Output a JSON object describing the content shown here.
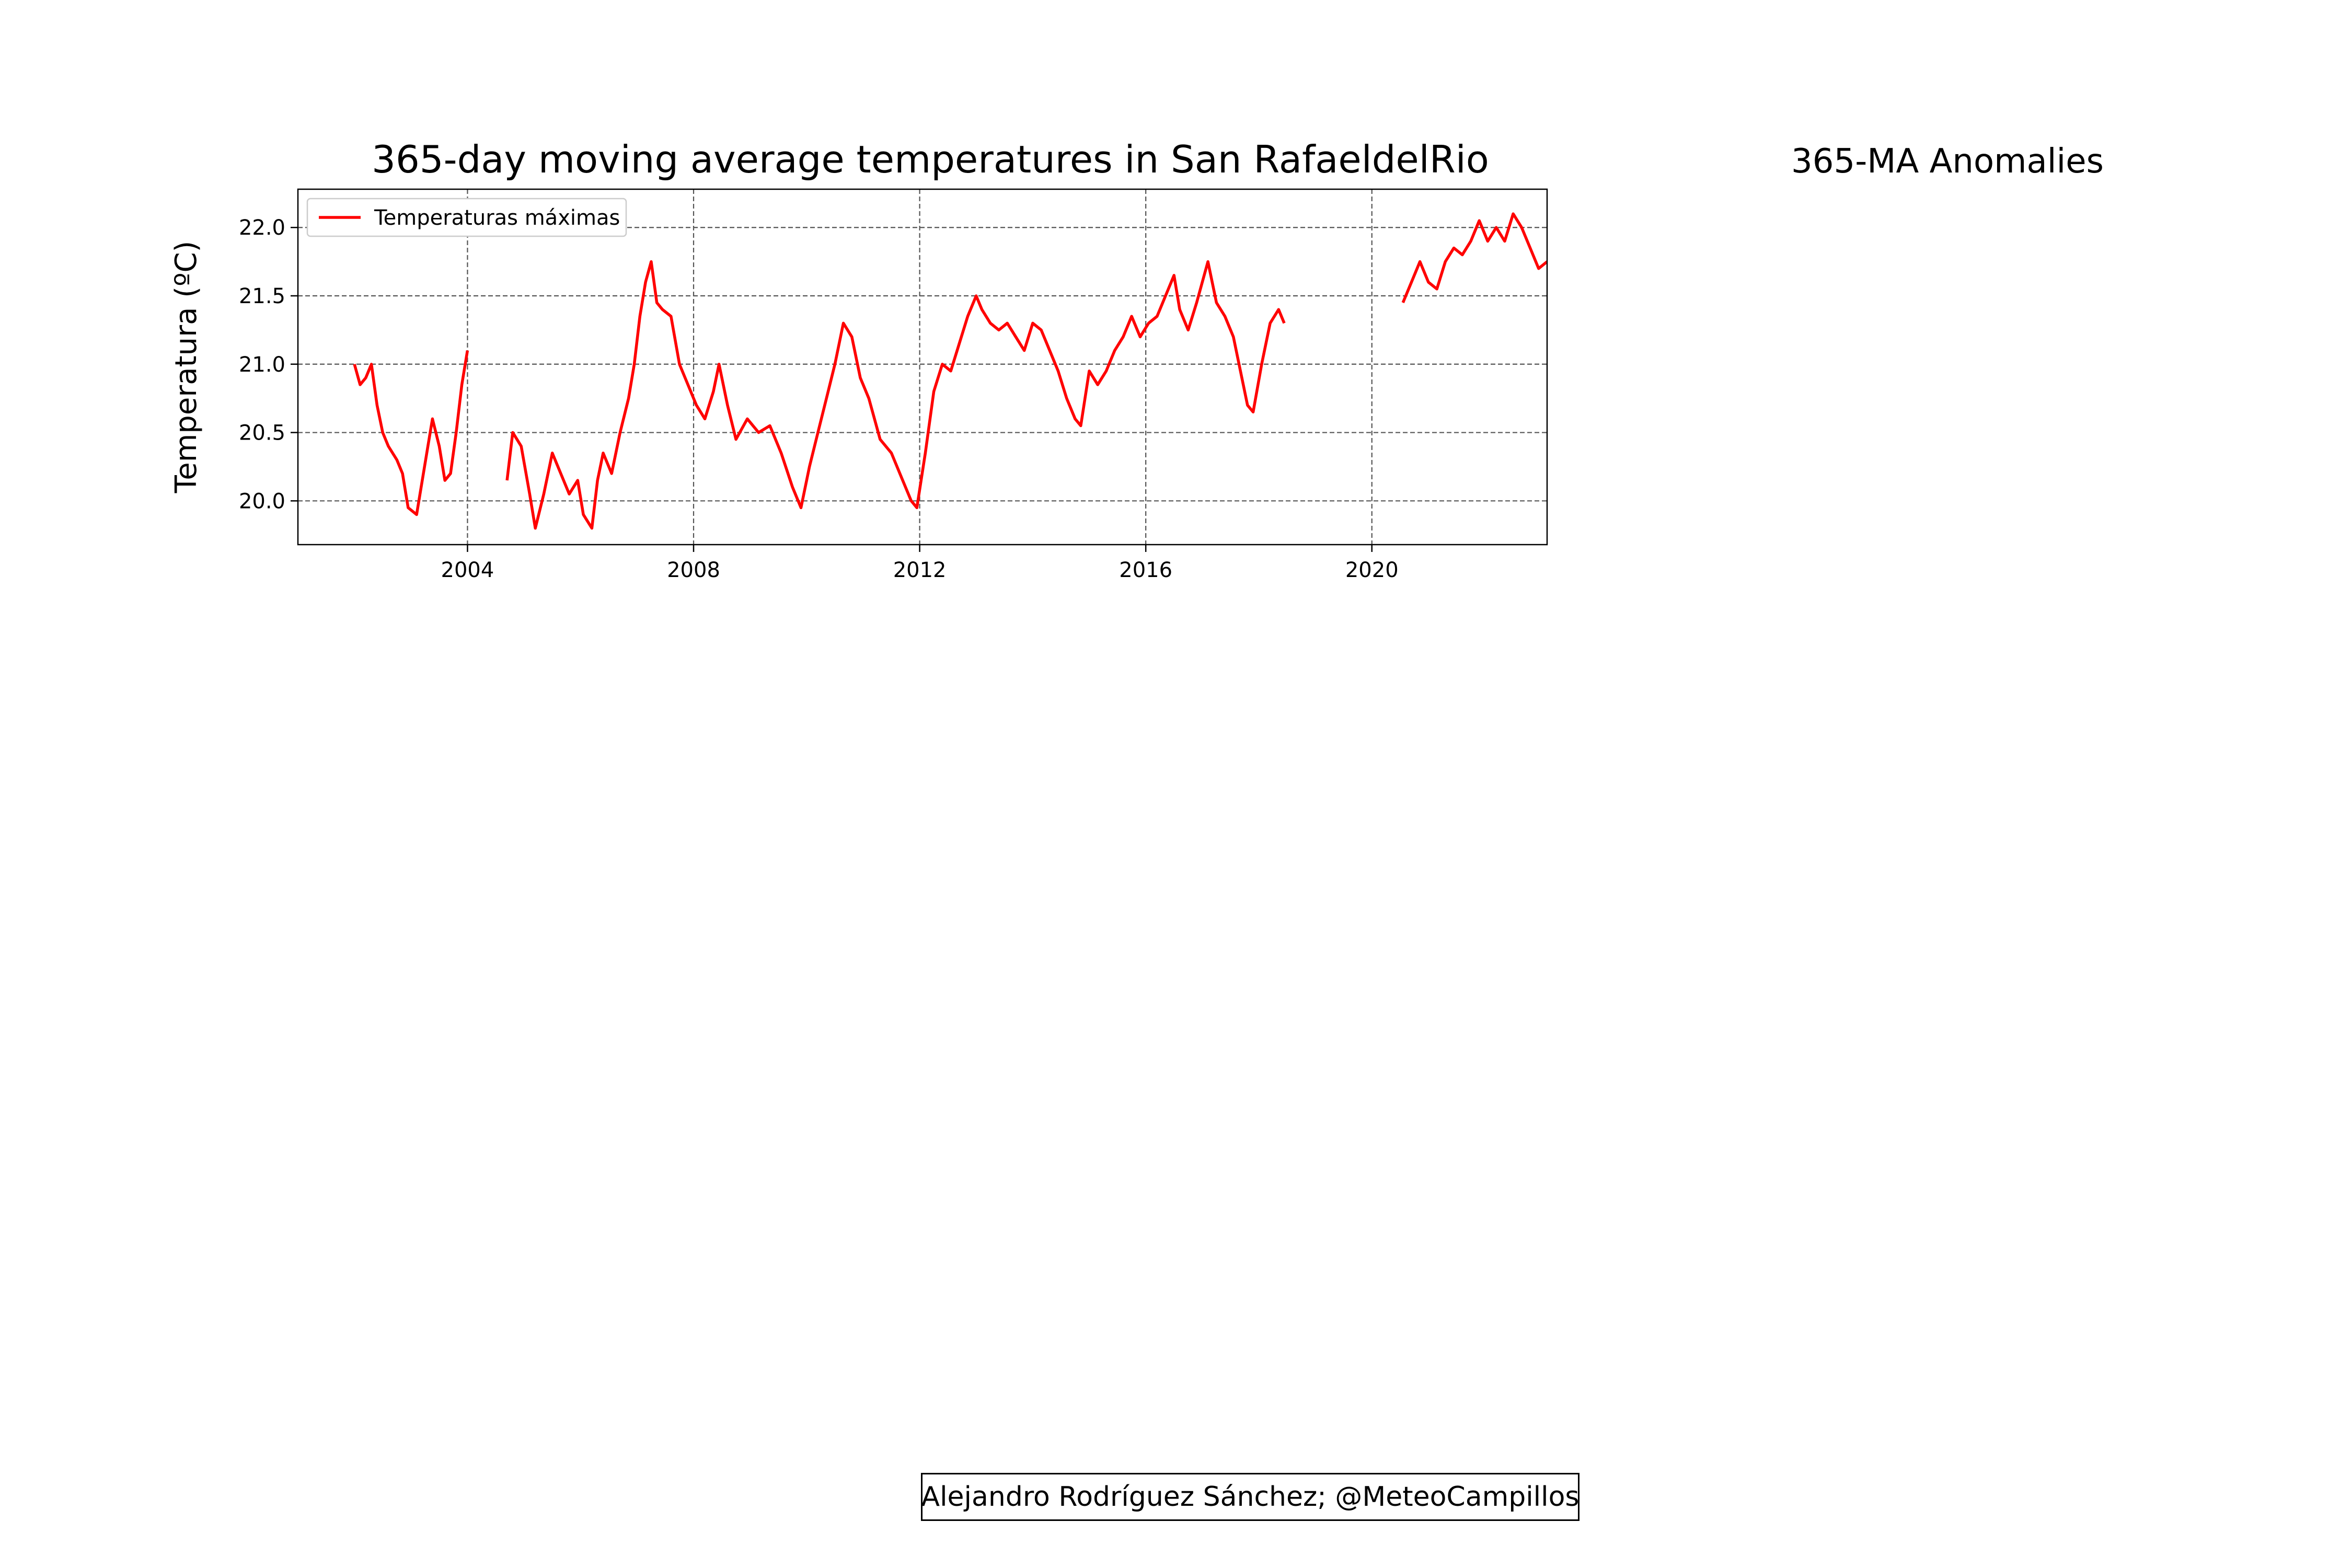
{
  "main_title": "365-day moving average temperatures in San RafaeldelRio",
  "anom_title": "365-MA Anomalies",
  "credit": "Alejandro Rodríguez Sánchez; @MeteoCampillos",
  "chart_data": [
    {
      "type": "line",
      "name": "max-main",
      "color": "#ff0000",
      "ylabel": "Temperatura (ºC)",
      "legend": "Temperaturas máximas",
      "legend_loc": "upper left",
      "x_axis": "year",
      "xlim": [
        2001.0,
        2023.1
      ],
      "ylim": [
        19.68,
        22.28
      ],
      "xticks": [
        2004,
        2008,
        2012,
        2016,
        2020
      ],
      "yticks": [
        20.0,
        20.5,
        21.0,
        21.5,
        22.0
      ],
      "ytick_labels": [
        "20.0",
        "20.5",
        "21.0",
        "21.5",
        "22.0"
      ],
      "grid": true,
      "segments": [
        [
          [
            2002.0,
            21.0
          ],
          [
            2002.15,
            20.85
          ],
          [
            2002.3,
            21.0
          ],
          [
            2002.4,
            20.7
          ],
          [
            2002.5,
            20.5
          ],
          [
            2002.65,
            20.4
          ],
          [
            2002.8,
            20.3
          ],
          [
            2002.95,
            20.1
          ],
          [
            2003.1,
            19.9
          ],
          [
            2003.25,
            20.15
          ],
          [
            2003.35,
            20.6
          ],
          [
            2003.45,
            20.45
          ],
          [
            2003.55,
            20.15
          ],
          [
            2003.7,
            20.3
          ],
          [
            2003.8,
            20.55
          ],
          [
            2003.9,
            20.9
          ],
          [
            2004.0,
            21.1
          ]
        ],
        [
          [
            2004.7,
            20.15
          ],
          [
            2004.85,
            20.5
          ],
          [
            2005.0,
            20.4
          ],
          [
            2005.2,
            19.8
          ],
          [
            2005.35,
            20.05
          ],
          [
            2005.55,
            20.35
          ],
          [
            2005.75,
            20.1
          ],
          [
            2005.9,
            20.15
          ],
          [
            2006.05,
            19.9
          ],
          [
            2006.2,
            19.8
          ],
          [
            2006.35,
            20.35
          ],
          [
            2006.55,
            20.2
          ],
          [
            2006.75,
            20.55
          ],
          [
            2006.95,
            21.0
          ],
          [
            2007.1,
            21.5
          ],
          [
            2007.25,
            21.75
          ],
          [
            2007.4,
            21.4
          ],
          [
            2007.55,
            21.4
          ],
          [
            2007.75,
            21.0
          ],
          [
            2007.95,
            20.8
          ],
          [
            2008.2,
            20.6
          ],
          [
            2008.45,
            21.0
          ],
          [
            2008.7,
            20.5
          ],
          [
            2008.95,
            20.6
          ],
          [
            2009.2,
            20.5
          ],
          [
            2009.4,
            20.55
          ],
          [
            2009.65,
            20.2
          ],
          [
            2009.9,
            19.95
          ],
          [
            2010.15,
            20.4
          ],
          [
            2010.35,
            20.75
          ],
          [
            2010.55,
            21.1
          ],
          [
            2010.75,
            21.3
          ],
          [
            2010.95,
            21.05
          ],
          [
            2011.15,
            20.8
          ],
          [
            2011.35,
            20.45
          ],
          [
            2011.55,
            20.3
          ],
          [
            2011.8,
            20.05
          ],
          [
            2011.95,
            19.95
          ],
          [
            2012.15,
            20.5
          ],
          [
            2012.35,
            20.95
          ],
          [
            2012.55,
            21.0
          ],
          [
            2012.75,
            21.2
          ],
          [
            2012.95,
            21.4
          ],
          [
            2013.15,
            21.5
          ],
          [
            2013.35,
            21.25
          ],
          [
            2013.55,
            21.3
          ],
          [
            2013.75,
            21.2
          ],
          [
            2013.95,
            21.05
          ],
          [
            2014.15,
            21.3
          ],
          [
            2014.35,
            21.2
          ],
          [
            2014.5,
            20.95
          ],
          [
            2014.7,
            20.75
          ],
          [
            2014.85,
            20.55
          ],
          [
            2015.05,
            21.0
          ],
          [
            2015.25,
            20.85
          ],
          [
            2015.45,
            21.05
          ],
          [
            2015.65,
            21.2
          ],
          [
            2015.85,
            21.4
          ],
          [
            2016.05,
            21.3
          ],
          [
            2016.25,
            21.35
          ],
          [
            2016.45,
            21.6
          ],
          [
            2016.65,
            21.3
          ],
          [
            2016.85,
            21.3
          ],
          [
            2017.0,
            21.6
          ],
          [
            2017.15,
            21.7
          ],
          [
            2017.35,
            21.3
          ],
          [
            2017.5,
            21.4
          ],
          [
            2017.7,
            21.0
          ],
          [
            2017.85,
            20.7
          ],
          [
            2018.05,
            21.05
          ],
          [
            2018.25,
            21.4
          ],
          [
            2018.45,
            21.35
          ]
        ],
        [
          [
            2020.5,
            21.45
          ],
          [
            2020.7,
            21.6
          ],
          [
            2020.9,
            21.8
          ],
          [
            2021.1,
            21.55
          ],
          [
            2021.3,
            21.7
          ],
          [
            2021.5,
            21.85
          ],
          [
            2021.7,
            21.8
          ],
          [
            2021.9,
            22.0
          ],
          [
            2022.1,
            21.85
          ],
          [
            2022.3,
            22.0
          ],
          [
            2022.5,
            21.95
          ],
          [
            2022.7,
            22.1
          ],
          [
            2022.9,
            21.85
          ],
          [
            2023.1,
            21.8
          ]
        ]
      ]
    },
    {
      "type": "line",
      "name": "max-main-b",
      "color": "#ff0000",
      "note": "continuation drawn in same axes",
      "segments": []
    }
  ]
}
